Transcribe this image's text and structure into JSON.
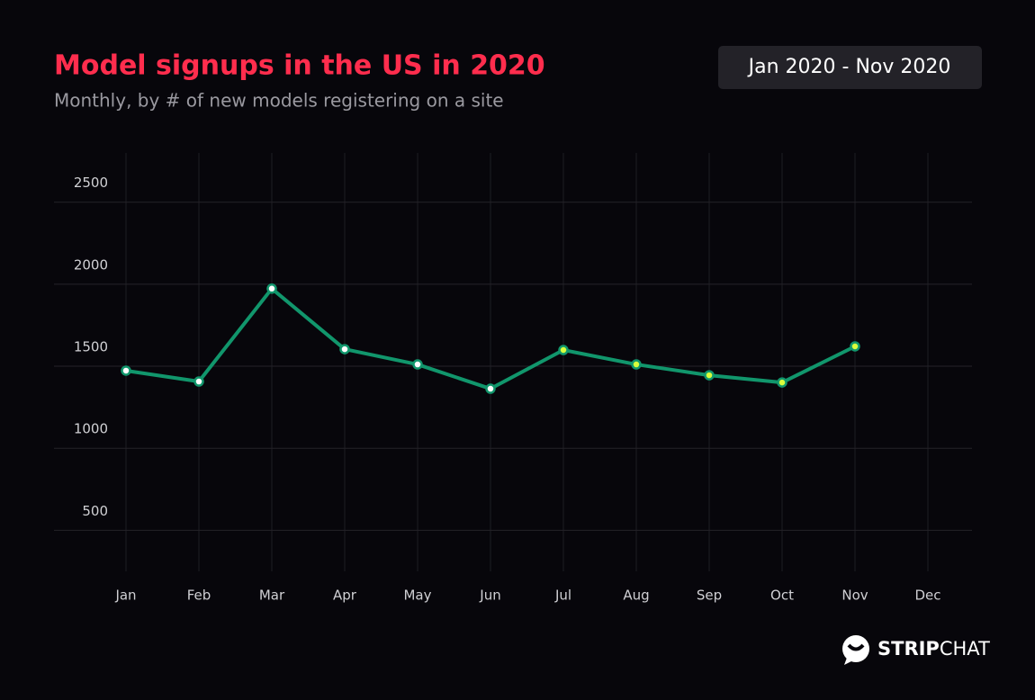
{
  "chart_data": {
    "type": "line",
    "title": "Model signups in the US in 2020",
    "subtitle": "Monthly, by # of new models registering on a site",
    "date_range": "Jan 2020 - Nov 2020",
    "brand": [
      "STRIP",
      "CHAT"
    ],
    "categories": [
      "Jan",
      "Feb",
      "Mar",
      "Apr",
      "May",
      "Jun",
      "Jul",
      "Aug",
      "Sep",
      "Oct",
      "Nov",
      "Dec"
    ],
    "series": [
      {
        "color": "#11966c",
        "values": [
          1473,
          1407,
          1973,
          1604,
          1511,
          1363,
          1599,
          1511,
          1445,
          1401,
          1621,
          null
        ],
        "marker_colors": [
          "#ffffff",
          "#ffffff",
          "#ffffff",
          "#ffffff",
          "#ffffff",
          "#ffffff",
          "#d8ff3c",
          "#d8ff3c",
          "#d8ff3c",
          "#d8ff3c",
          "#d8ff3c",
          "#d8ff3c"
        ]
      }
    ],
    "ylim": [
      250,
      2800
    ],
    "yticks": [
      500,
      1000,
      1500,
      2000,
      2500
    ],
    "grid": true
  }
}
